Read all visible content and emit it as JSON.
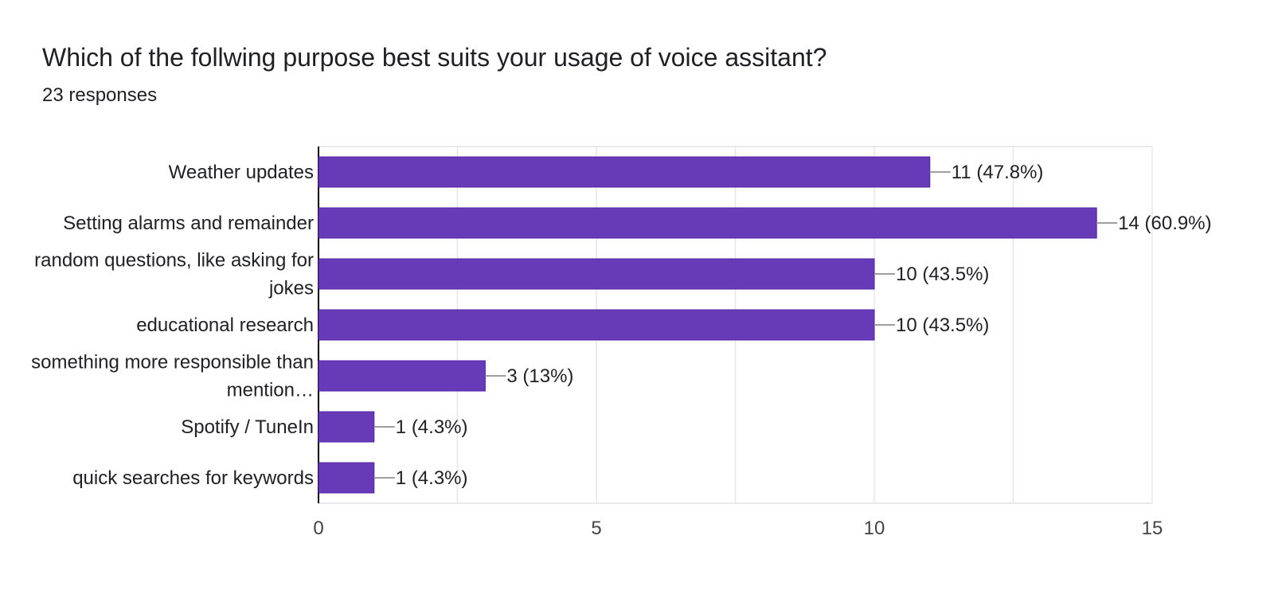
{
  "header": {
    "title": "Which of the follwing purpose best suits your usage of voice assitant?",
    "responses": "23 responses"
  },
  "colors": {
    "bar": "#673ab7",
    "bar_border": "#5022a8",
    "grid": "#e8e8e8",
    "axis": "#000000",
    "connector": "#9e9e9e",
    "text": "#202124",
    "tick_text": "#444444"
  },
  "chart_data": {
    "type": "bar",
    "orientation": "horizontal",
    "title": "Which of the follwing purpose best suits your usage of voice assitant?",
    "subtitle": "23 responses",
    "xlabel": "",
    "ylabel": "",
    "xlim": [
      0,
      15
    ],
    "xticks": [
      0,
      5,
      10,
      15
    ],
    "grid": true,
    "categories": [
      [
        "Weather updates"
      ],
      [
        "Setting alarms and remainder"
      ],
      [
        "random questions, like asking for",
        "jokes"
      ],
      [
        "educational research"
      ],
      [
        "something more responsible than",
        "mention…"
      ],
      [
        "Spotify / TuneIn"
      ],
      [
        "quick searches for keywords"
      ]
    ],
    "values": [
      11,
      14,
      10,
      10,
      3,
      1,
      1
    ],
    "data_labels": [
      "11 (47.8%)",
      "14 (60.9%)",
      "10 (43.5%)",
      "10 (43.5%)",
      "3 (13%)",
      "1 (4.3%)",
      "1 (4.3%)"
    ]
  }
}
